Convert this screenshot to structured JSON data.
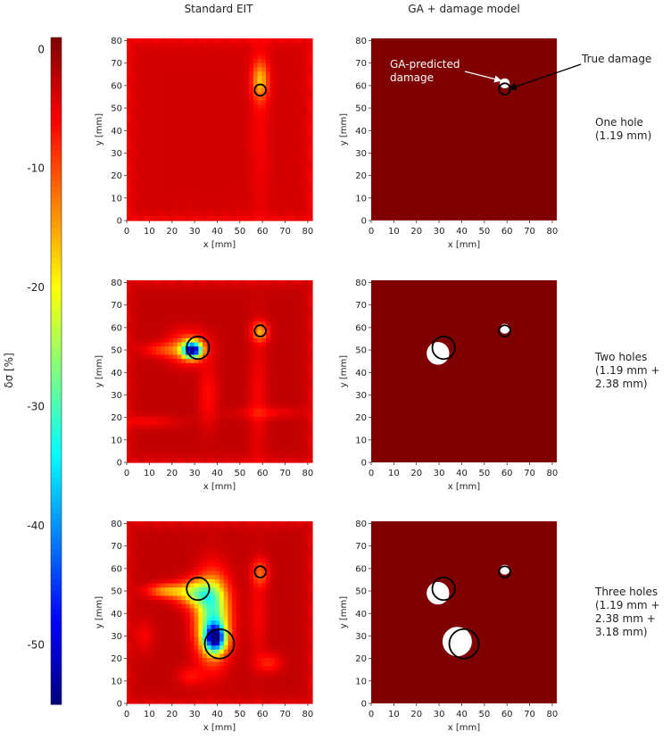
{
  "figure": {
    "columns": [
      "Standard EIT",
      "GA + damage model"
    ],
    "rows": [
      {
        "label_lines": [
          "One hole",
          "(1.19 mm)"
        ]
      },
      {
        "label_lines": [
          "Two holes",
          "(1.19 mm +",
          "2.38 mm)"
        ]
      },
      {
        "label_lines": [
          "Three holes",
          "(1.19 mm +",
          "2.38 mm +",
          "3.18 mm)"
        ]
      }
    ],
    "annotations": {
      "predicted": [
        "GA-predicted",
        "damage"
      ],
      "true": "True damage"
    },
    "colors": {
      "background_field": "#7f0000",
      "predicted_fill": "#ffffff",
      "true_outline": "#000000"
    }
  },
  "chart_data": [
    {
      "type": "heatmap",
      "panel": "eit-1",
      "title": "Standard EIT",
      "xlabel": "x [mm]",
      "ylabel": "y [mm]",
      "xlim": [
        0,
        82
      ],
      "ylim": [
        0,
        81
      ],
      "xticks": [
        0,
        10,
        20,
        30,
        40,
        50,
        60,
        70,
        80
      ],
      "yticks": [
        0,
        10,
        20,
        30,
        40,
        50,
        60,
        70,
        80
      ],
      "baseline": -3.5,
      "blobs": [
        {
          "x": 59,
          "y": 62,
          "sx": 2.5,
          "sy": 6,
          "amp": -12
        },
        {
          "x": 59,
          "y": 40,
          "sx": 3,
          "sy": 30,
          "amp": -2
        }
      ],
      "true_damage": [
        {
          "x": 59,
          "y": 58,
          "d": 2.5
        }
      ]
    },
    {
      "type": "heatmap",
      "panel": "ga-1",
      "title": "GA + damage model",
      "xlabel": "x [mm]",
      "ylabel": "y [mm]",
      "xlim": [
        0,
        82
      ],
      "ylim": [
        0,
        81
      ],
      "xticks": [
        0,
        10,
        20,
        30,
        40,
        50,
        60,
        70,
        80
      ],
      "yticks": [
        0,
        10,
        20,
        30,
        40,
        50,
        60,
        70,
        80
      ],
      "predicted_damage": [
        {
          "x": 59,
          "y": 61,
          "d": 2.2
        }
      ],
      "true_damage": [
        {
          "x": 59,
          "y": 58.5,
          "d": 2.5
        }
      ]
    },
    {
      "type": "heatmap",
      "panel": "eit-2",
      "title": "Standard EIT",
      "xlabel": "x [mm]",
      "ylabel": "y [mm]",
      "xlim": [
        0,
        82
      ],
      "ylim": [
        0,
        81
      ],
      "xticks": [
        0,
        10,
        20,
        30,
        40,
        50,
        60,
        70,
        80
      ],
      "yticks": [
        0,
        10,
        20,
        30,
        40,
        50,
        60,
        70,
        80
      ],
      "baseline": -2.5,
      "blobs": [
        {
          "x": 29,
          "y": 50,
          "sx": 2.8,
          "sy": 2.4,
          "amp": -46
        },
        {
          "x": 27,
          "y": 51,
          "sx": 6,
          "sy": 5,
          "amp": -10
        },
        {
          "x": 17,
          "y": 50,
          "sx": 7,
          "sy": 2.2,
          "amp": -6
        },
        {
          "x": 59,
          "y": 58,
          "sx": 2.5,
          "sy": 3,
          "amp": -12
        },
        {
          "x": 36,
          "y": 30,
          "sx": 3,
          "sy": 10,
          "amp": -4
        },
        {
          "x": 58,
          "y": 30,
          "sx": 3,
          "sy": 22,
          "amp": -3
        },
        {
          "x": 10,
          "y": 18,
          "sx": 10,
          "sy": 2,
          "amp": -3
        },
        {
          "x": 62,
          "y": 22,
          "sx": 10,
          "sy": 2,
          "amp": -3
        }
      ],
      "true_damage": [
        {
          "x": 59,
          "y": 58.5,
          "d": 2.5
        },
        {
          "x": 31.5,
          "y": 51,
          "d": 5
        }
      ]
    },
    {
      "type": "heatmap",
      "panel": "ga-2",
      "title": "GA + damage model",
      "xlabel": "x [mm]",
      "ylabel": "y [mm]",
      "xlim": [
        0,
        82
      ],
      "ylim": [
        0,
        81
      ],
      "xticks": [
        0,
        10,
        20,
        30,
        40,
        50,
        60,
        70,
        80
      ],
      "yticks": [
        0,
        10,
        20,
        30,
        40,
        50,
        60,
        70,
        80
      ],
      "predicted_damage": [
        {
          "x": 59,
          "y": 59.5,
          "d": 2.2
        },
        {
          "x": 29.5,
          "y": 48.5,
          "d": 5
        }
      ],
      "true_damage": [
        {
          "x": 59,
          "y": 58.5,
          "d": 2.5
        },
        {
          "x": 32,
          "y": 51,
          "d": 5
        }
      ]
    },
    {
      "type": "heatmap",
      "panel": "eit-3",
      "title": "Standard EIT",
      "xlabel": "x [mm]",
      "ylabel": "y [mm]",
      "xlim": [
        0,
        82
      ],
      "ylim": [
        0,
        81
      ],
      "xticks": [
        0,
        10,
        20,
        30,
        40,
        50,
        60,
        70,
        80
      ],
      "yticks": [
        0,
        10,
        20,
        30,
        40,
        50,
        60,
        70,
        80
      ],
      "baseline": -2.5,
      "blobs": [
        {
          "x": 39,
          "y": 29,
          "sx": 3,
          "sy": 4,
          "amp": -40
        },
        {
          "x": 38,
          "y": 38,
          "sx": 5,
          "sy": 12,
          "amp": -28
        },
        {
          "x": 31,
          "y": 49,
          "sx": 6,
          "sy": 4,
          "amp": -18
        },
        {
          "x": 18,
          "y": 50,
          "sx": 6,
          "sy": 2.2,
          "amp": -12
        },
        {
          "x": 59,
          "y": 58,
          "sx": 2.5,
          "sy": 4,
          "amp": -8
        },
        {
          "x": 58,
          "y": 40,
          "sx": 3,
          "sy": 16,
          "amp": -3
        },
        {
          "x": 63,
          "y": 18,
          "sx": 4,
          "sy": 3,
          "amp": -5
        },
        {
          "x": 28,
          "y": 12,
          "sx": 4,
          "sy": 3,
          "amp": -4
        },
        {
          "x": 8,
          "y": 30,
          "sx": 3,
          "sy": 5,
          "amp": -3
        }
      ],
      "true_damage": [
        {
          "x": 59,
          "y": 58.5,
          "d": 2.5
        },
        {
          "x": 31.5,
          "y": 51,
          "d": 5
        },
        {
          "x": 41,
          "y": 26.5,
          "d": 6.5
        }
      ]
    },
    {
      "type": "heatmap",
      "panel": "ga-3",
      "title": "GA + damage model",
      "xlabel": "x [mm]",
      "ylabel": "y [mm]",
      "xlim": [
        0,
        82
      ],
      "ylim": [
        0,
        81
      ],
      "xticks": [
        0,
        10,
        20,
        30,
        40,
        50,
        60,
        70,
        80
      ],
      "yticks": [
        0,
        10,
        20,
        30,
        40,
        50,
        60,
        70,
        80
      ],
      "predicted_damage": [
        {
          "x": 59,
          "y": 59.5,
          "d": 2.2
        },
        {
          "x": 29.5,
          "y": 49,
          "d": 5
        },
        {
          "x": 38,
          "y": 27.5,
          "d": 6.5
        }
      ],
      "true_damage": [
        {
          "x": 59,
          "y": 58.5,
          "d": 2.5
        },
        {
          "x": 32,
          "y": 51,
          "d": 5
        },
        {
          "x": 41,
          "y": 26.5,
          "d": 6.5
        }
      ]
    },
    {
      "type": "colorbar",
      "panel": "colorbar",
      "label": "δσ [%]",
      "range": [
        -55,
        1
      ],
      "ticks": [
        0,
        -10,
        -20,
        -30,
        -40,
        -50
      ],
      "tick_labels": [
        "0",
        "-10",
        "-20",
        "-30",
        "-40",
        "-50"
      ],
      "colormap": "jet"
    }
  ]
}
